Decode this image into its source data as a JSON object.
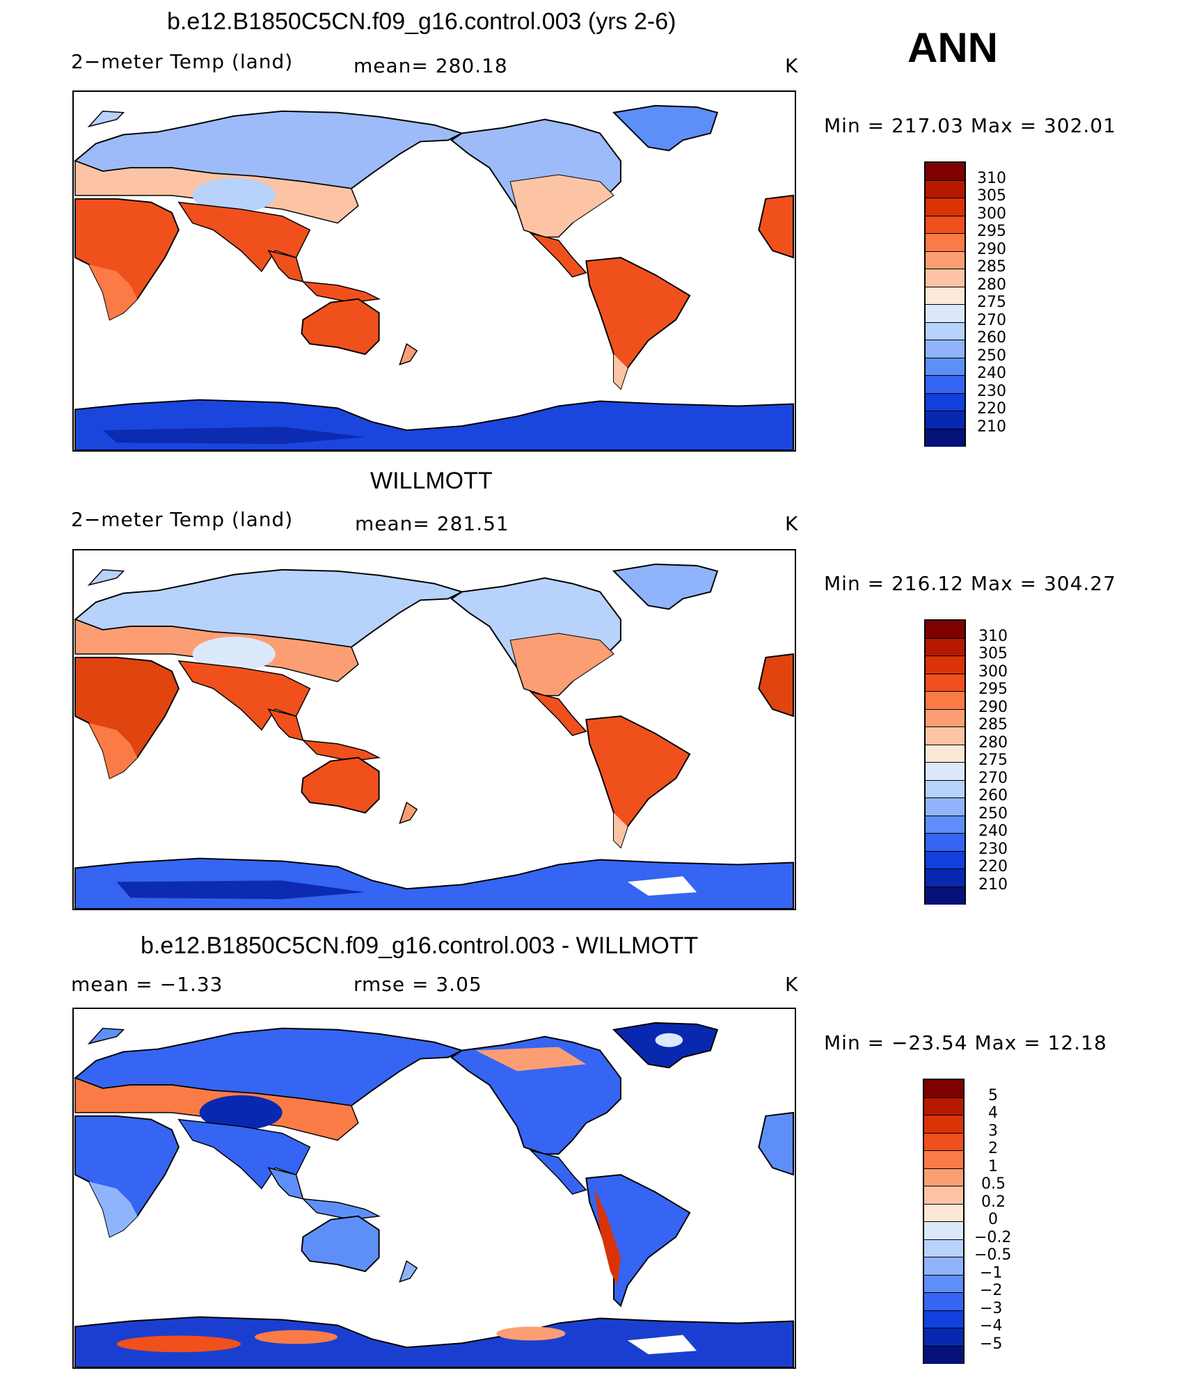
{
  "header_label": "ANN",
  "panels": [
    {
      "title": "b.e12.B1850C5CN.f09_g16.control.003 (yrs 2-6)",
      "left_text": "2−meter Temp (land)",
      "mid_text": "mean=  280.18",
      "unit": "K",
      "minmax": "Min  =  217.03  Max  =  302.01",
      "colorbar": "abs"
    },
    {
      "title": "WILLMOTT",
      "left_text": "2−meter Temp (land)",
      "mid_text": "mean=  281.51",
      "unit": "K",
      "minmax": "Min  =  216.12  Max  =  304.27",
      "colorbar": "abs"
    },
    {
      "title": "b.e12.B1850C5CN.f09_g16.control.003 - WILLMOTT",
      "left_text": "mean  =     −1.33",
      "mid_text": "rmse  =      3.05",
      "unit": "K",
      "minmax": "Min  =  −23.54  Max  =     12.18",
      "colorbar": "diff"
    }
  ],
  "colorbars": {
    "abs": {
      "labels": [
        "310",
        "305",
        "300",
        "295",
        "290",
        "285",
        "280",
        "275",
        "270",
        "260",
        "250",
        "240",
        "230",
        "220",
        "210"
      ],
      "colors": [
        "#7f0000",
        "#b51a00",
        "#d93306",
        "#f0501c",
        "#fb7b46",
        "#fc9e74",
        "#fcc4a4",
        "#fde8d8",
        "#dbe9fb",
        "#b7d2fb",
        "#8fb4fb",
        "#5e8ff8",
        "#3565f2",
        "#1240dc",
        "#0828b0",
        "#06127a"
      ]
    },
    "diff": {
      "labels": [
        "5",
        "4",
        "3",
        "2",
        "1",
        "0.5",
        "0.2",
        "0",
        "−0.2",
        "−0.5",
        "−1",
        "−2",
        "−3",
        "−4",
        "−5"
      ],
      "colors": [
        "#7f0000",
        "#b51a00",
        "#d93306",
        "#f0501c",
        "#fb7b46",
        "#fc9e74",
        "#fcc4a4",
        "#fde8d8",
        "#dbe9fb",
        "#b7d2fb",
        "#8fb4fb",
        "#5e8ff8",
        "#3565f2",
        "#1240dc",
        "#0828b0",
        "#06127a"
      ]
    }
  }
}
